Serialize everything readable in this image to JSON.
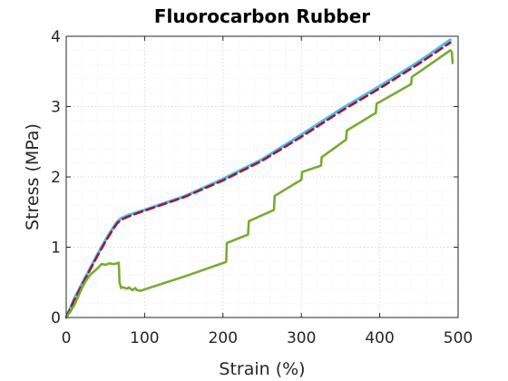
{
  "chart_data": {
    "type": "line",
    "title": "Fluorocarbon Rubber",
    "xlabel": "Strain (%)",
    "ylabel": "Stress (MPa)",
    "xlim": [
      0,
      500
    ],
    "ylim": [
      0,
      4
    ],
    "xticks": [
      0,
      100,
      200,
      300,
      400,
      500
    ],
    "yticks": [
      0,
      1,
      2,
      3,
      4
    ],
    "grid": true,
    "minor_grid": true,
    "series": [
      {
        "color": "#4DBEEE",
        "style": "solid",
        "x": [
          0,
          10,
          20,
          30,
          40,
          50,
          60,
          65,
          70,
          80,
          100,
          150,
          200,
          250,
          300,
          350,
          400,
          450,
          490
        ],
        "y": [
          0,
          0.26,
          0.48,
          0.69,
          0.9,
          1.1,
          1.28,
          1.36,
          1.41,
          1.46,
          1.53,
          1.72,
          1.97,
          2.25,
          2.6,
          2.96,
          3.29,
          3.64,
          3.95
        ]
      },
      {
        "color": "#A2142F",
        "style": "dashed",
        "x": [
          0,
          10,
          20,
          30,
          40,
          50,
          60,
          65,
          70,
          80,
          100,
          150,
          200,
          250,
          300,
          350,
          400,
          450,
          490
        ],
        "y": [
          0,
          0.24,
          0.46,
          0.67,
          0.88,
          1.08,
          1.26,
          1.34,
          1.39,
          1.44,
          1.52,
          1.71,
          1.95,
          2.23,
          2.57,
          2.93,
          3.26,
          3.61,
          3.91
        ]
      },
      {
        "color": "#77AC30",
        "style": "solid",
        "x": [
          0,
          5,
          10,
          15,
          20,
          25,
          30,
          35,
          40,
          45,
          50,
          55,
          60,
          65,
          67,
          68,
          70,
          72,
          75,
          78,
          80,
          83,
          85,
          88,
          90,
          95,
          100,
          150,
          204,
          205,
          232,
          233,
          265,
          266,
          300,
          301,
          325,
          326,
          357,
          358,
          395,
          396,
          440,
          441,
          490,
          492,
          493
        ],
        "y": [
          0,
          0.08,
          0.17,
          0.29,
          0.42,
          0.52,
          0.6,
          0.65,
          0.7,
          0.76,
          0.75,
          0.77,
          0.76,
          0.77,
          0.78,
          0.5,
          0.42,
          0.43,
          0.42,
          0.41,
          0.43,
          0.4,
          0.39,
          0.42,
          0.39,
          0.38,
          0.4,
          0.58,
          0.79,
          1.06,
          1.18,
          1.37,
          1.53,
          1.73,
          1.96,
          2.07,
          2.16,
          2.28,
          2.53,
          2.66,
          2.91,
          3.04,
          3.32,
          3.42,
          3.8,
          3.78,
          3.62
        ]
      }
    ]
  }
}
